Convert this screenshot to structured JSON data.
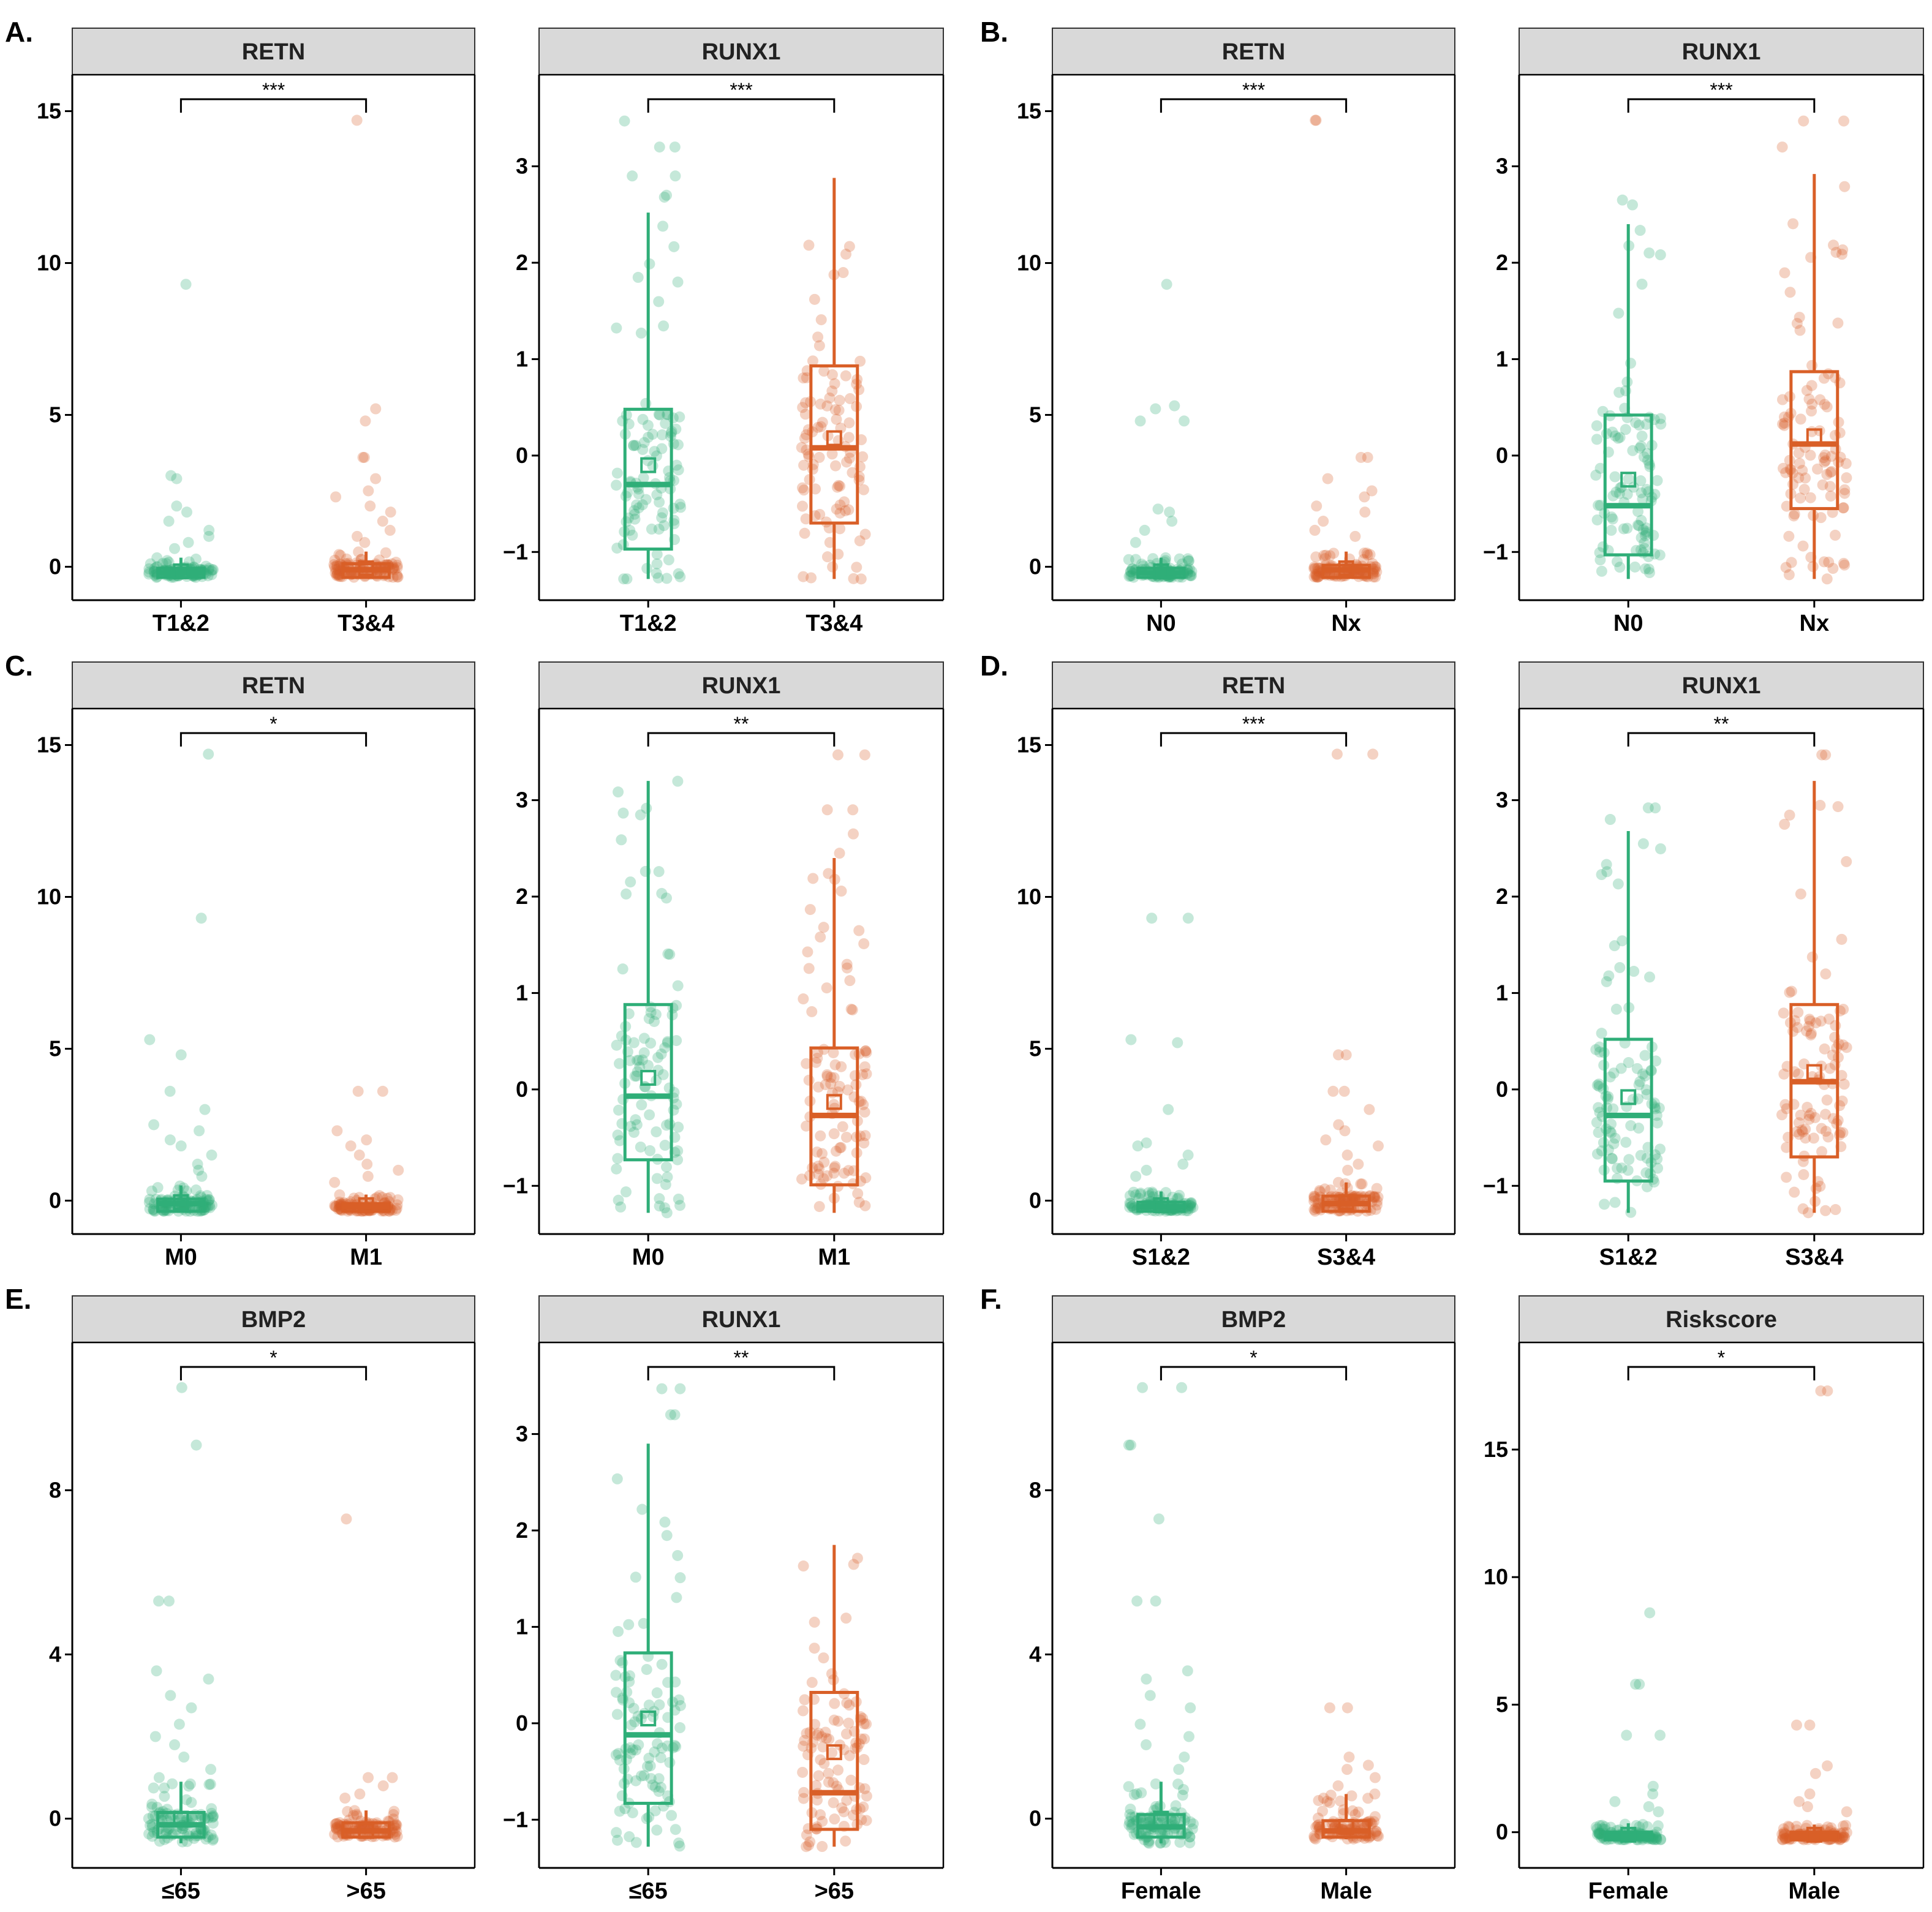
{
  "figure": {
    "colors": {
      "group1": "#2fae78",
      "group2": "#d95f27",
      "strip_fill": "#d9d9d9",
      "strip_border": "#333333"
    },
    "panel_letters": [
      "A.",
      "B.",
      "C.",
      "D.",
      "E.",
      "F."
    ]
  },
  "chart_data": [
    {
      "panel": "A.",
      "type": "box",
      "title": "RETN",
      "categories": [
        "T1&2",
        "T3&4"
      ],
      "yticks": [
        0,
        5,
        10,
        15
      ],
      "ylim": [
        -1.1,
        16.2
      ],
      "significance": "***",
      "groups": [
        {
          "name": "T1&2",
          "median": -0.2,
          "q1": -0.35,
          "q3": -0.05,
          "mean": -0.15,
          "whisker_low": -0.35,
          "whisker_high": 0.3,
          "outliers": [
            9.3,
            3.0,
            2.9,
            2.0,
            1.8,
            1.5,
            1.2,
            1.0,
            0.8,
            0.6
          ]
        },
        {
          "name": "T3&4",
          "median": -0.1,
          "q1": -0.35,
          "q3": 0.1,
          "mean": -0.05,
          "whisker_low": -0.35,
          "whisker_high": 0.5,
          "outliers": [
            14.7,
            5.2,
            4.8,
            3.6,
            3.6,
            2.9,
            2.5,
            2.3,
            2.0,
            1.8,
            1.5,
            1.2,
            1.0,
            0.8
          ]
        }
      ]
    },
    {
      "panel": "A.",
      "type": "box",
      "title": "RUNX1",
      "categories": [
        "T1&2",
        "T3&4"
      ],
      "yticks": [
        -1,
        0,
        1,
        2,
        3
      ],
      "ylim": [
        -1.5,
        3.95
      ],
      "significance": "***",
      "groups": [
        {
          "name": "T1&2",
          "median": -0.3,
          "q1": -0.97,
          "q3": 0.48,
          "mean": -0.1,
          "whisker_low": -1.28,
          "whisker_high": 2.52,
          "outliers": [
            3.47,
            3.2,
            3.2,
            2.9,
            2.9,
            2.7,
            2.68
          ]
        },
        {
          "name": "T3&4",
          "median": 0.08,
          "q1": -0.7,
          "q3": 0.93,
          "mean": 0.18,
          "whisker_low": -1.28,
          "whisker_high": 2.88,
          "outliers": []
        }
      ]
    },
    {
      "panel": "B.",
      "type": "box",
      "title": "RETN",
      "categories": [
        "N0",
        "Nx"
      ],
      "yticks": [
        0,
        5,
        10,
        15
      ],
      "ylim": [
        -1.1,
        16.2
      ],
      "significance": "***",
      "groups": [
        {
          "name": "N0",
          "median": -0.2,
          "q1": -0.35,
          "q3": -0.05,
          "mean": -0.15,
          "whisker_low": -0.35,
          "whisker_high": 0.3,
          "outliers": [
            9.3,
            5.3,
            5.2,
            4.8,
            4.8,
            1.9,
            1.8,
            1.5,
            1.2,
            0.8
          ]
        },
        {
          "name": "Nx",
          "median": -0.1,
          "q1": -0.35,
          "q3": 0.05,
          "mean": -0.05,
          "whisker_low": -0.35,
          "whisker_high": 0.5,
          "outliers": [
            14.7,
            14.7,
            3.6,
            3.6,
            2.9,
            2.5,
            2.3,
            2.0,
            1.8,
            1.5,
            1.2,
            1.0
          ]
        }
      ]
    },
    {
      "panel": "B.",
      "type": "box",
      "title": "RUNX1",
      "categories": [
        "N0",
        "Nx"
      ],
      "yticks": [
        -1,
        0,
        1,
        2,
        3
      ],
      "ylim": [
        -1.5,
        3.95
      ],
      "significance": "***",
      "groups": [
        {
          "name": "N0",
          "median": -0.52,
          "q1": -1.03,
          "q3": 0.42,
          "mean": -0.25,
          "whisker_low": -1.28,
          "whisker_high": 2.4,
          "outliers": [
            2.65,
            2.6
          ]
        },
        {
          "name": "Nx",
          "median": 0.12,
          "q1": -0.55,
          "q3": 0.87,
          "mean": 0.2,
          "whisker_low": -1.28,
          "whisker_high": 2.92,
          "outliers": [
            3.47,
            3.47,
            3.2
          ]
        }
      ]
    },
    {
      "panel": "C.",
      "type": "box",
      "title": "RETN",
      "categories": [
        "M0",
        "M1"
      ],
      "yticks": [
        0,
        5,
        10,
        15
      ],
      "ylim": [
        -1.1,
        16.2
      ],
      "significance": "*",
      "groups": [
        {
          "name": "M0",
          "median": -0.1,
          "q1": -0.35,
          "q3": 0.05,
          "mean": -0.05,
          "whisker_low": -0.35,
          "whisker_high": 0.5,
          "outliers": [
            14.7,
            9.3,
            5.3,
            4.8,
            3.6,
            3.0,
            2.5,
            2.3,
            2.0,
            1.8,
            1.5,
            1.2,
            1.0,
            0.8
          ]
        },
        {
          "name": "M1",
          "median": -0.2,
          "q1": -0.35,
          "q3": -0.1,
          "mean": -0.15,
          "whisker_low": -0.35,
          "whisker_high": 0.2,
          "outliers": [
            3.6,
            3.6,
            2.3,
            2.0,
            1.8,
            1.5,
            1.2,
            1.0,
            0.8,
            0.6
          ]
        }
      ]
    },
    {
      "panel": "C.",
      "type": "box",
      "title": "RUNX1",
      "categories": [
        "M0",
        "M1"
      ],
      "yticks": [
        -1,
        0,
        1,
        2,
        3
      ],
      "ylim": [
        -1.5,
        3.95
      ],
      "significance": "**",
      "groups": [
        {
          "name": "M0",
          "median": -0.07,
          "q1": -0.73,
          "q3": 0.88,
          "mean": 0.12,
          "whisker_low": -1.28,
          "whisker_high": 3.2,
          "outliers": []
        },
        {
          "name": "M1",
          "median": -0.27,
          "q1": -0.99,
          "q3": 0.43,
          "mean": -0.13,
          "whisker_low": -1.28,
          "whisker_high": 2.4,
          "outliers": [
            3.47,
            3.47,
            2.9,
            2.9,
            2.65,
            2.45
          ]
        }
      ]
    },
    {
      "panel": "D.",
      "type": "box",
      "title": "RETN",
      "categories": [
        "S1&2",
        "S3&4"
      ],
      "yticks": [
        0,
        5,
        10,
        15
      ],
      "ylim": [
        -1.1,
        16.2
      ],
      "significance": "***",
      "groups": [
        {
          "name": "S1&2",
          "median": -0.2,
          "q1": -0.35,
          "q3": -0.05,
          "mean": -0.15,
          "whisker_low": -0.35,
          "whisker_high": 0.3,
          "outliers": [
            9.3,
            9.3,
            5.3,
            5.2,
            3.0,
            1.9,
            1.8,
            1.5,
            1.2,
            1.0,
            0.8
          ]
        },
        {
          "name": "S3&4",
          "median": -0.1,
          "q1": -0.35,
          "q3": 0.15,
          "mean": -0.05,
          "whisker_low": -0.35,
          "whisker_high": 0.6,
          "outliers": [
            14.7,
            14.7,
            4.8,
            4.8,
            3.6,
            3.6,
            3.0,
            2.5,
            2.3,
            2.0,
            1.8,
            1.5,
            1.2,
            1.0
          ]
        }
      ]
    },
    {
      "panel": "D.",
      "type": "box",
      "title": "RUNX1",
      "categories": [
        "S1&2",
        "S3&4"
      ],
      "yticks": [
        -1,
        0,
        1,
        2,
        3
      ],
      "ylim": [
        -1.5,
        3.95
      ],
      "significance": "**",
      "groups": [
        {
          "name": "S1&2",
          "median": -0.27,
          "q1": -0.95,
          "q3": 0.52,
          "mean": -0.08,
          "whisker_low": -1.28,
          "whisker_high": 2.68,
          "outliers": [
            2.92,
            2.92,
            2.8
          ]
        },
        {
          "name": "S3&4",
          "median": 0.08,
          "q1": -0.7,
          "q3": 0.88,
          "mean": 0.18,
          "whisker_low": -1.28,
          "whisker_high": 3.2,
          "outliers": [
            3.47,
            3.47
          ]
        }
      ]
    },
    {
      "panel": "E.",
      "type": "box",
      "title": "BMP2",
      "categories": [
        "≤65",
        ">65"
      ],
      "yticks": [
        0,
        4,
        8
      ],
      "ylim": [
        -1.2,
        11.6
      ],
      "significance": "*",
      "groups": [
        {
          "name": "≤65",
          "median": -0.15,
          "q1": -0.45,
          "q3": 0.15,
          "mean": 0.0,
          "whisker_low": -0.6,
          "whisker_high": 0.9,
          "outliers": [
            10.5,
            9.1,
            5.3,
            5.3,
            3.6,
            3.4,
            3.0,
            2.7,
            2.3,
            2.0,
            1.8,
            1.5,
            1.2,
            1.0
          ]
        },
        {
          "name": ">65",
          "median": -0.3,
          "q1": -0.45,
          "q3": -0.1,
          "mean": -0.3,
          "whisker_low": -0.45,
          "whisker_high": 0.2,
          "outliers": [
            7.3,
            1.0,
            1.0,
            0.8,
            0.6,
            0.5
          ]
        }
      ]
    },
    {
      "panel": "E.",
      "type": "box",
      "title": "RUNX1",
      "categories": [
        "≤65",
        ">65"
      ],
      "yticks": [
        -1,
        0,
        1,
        2,
        3
      ],
      "ylim": [
        -1.5,
        3.95
      ],
      "significance": "**",
      "groups": [
        {
          "name": "≤65",
          "median": -0.12,
          "q1": -0.83,
          "q3": 0.73,
          "mean": 0.05,
          "whisker_low": -1.28,
          "whisker_high": 2.9,
          "outliers": [
            3.47,
            3.47,
            3.2,
            3.2
          ]
        },
        {
          "name": ">65",
          "median": -0.72,
          "q1": -1.1,
          "q3": 0.32,
          "mean": -0.3,
          "whisker_low": -1.28,
          "whisker_high": 1.85,
          "outliers": []
        }
      ]
    },
    {
      "panel": "F.",
      "type": "box",
      "title": "BMP2",
      "categories": [
        "Female",
        "Male"
      ],
      "yticks": [
        0,
        4,
        8
      ],
      "ylim": [
        -1.2,
        11.6
      ],
      "significance": "*",
      "groups": [
        {
          "name": "Female",
          "median": -0.2,
          "q1": -0.45,
          "q3": 0.1,
          "mean": 0.0,
          "whisker_low": -0.6,
          "whisker_high": 0.9,
          "outliers": [
            10.5,
            10.5,
            9.1,
            9.1,
            7.3,
            5.3,
            5.3,
            3.6,
            3.4,
            3.0,
            2.7,
            2.3,
            2.0,
            1.8,
            1.5,
            1.2
          ]
        },
        {
          "name": "Male",
          "median": -0.3,
          "q1": -0.45,
          "q3": -0.05,
          "mean": -0.2,
          "whisker_low": -0.5,
          "whisker_high": 0.6,
          "outliers": [
            2.7,
            2.7,
            1.5,
            1.3,
            1.2,
            1.0,
            0.8,
            0.6
          ]
        }
      ]
    },
    {
      "panel": "F.",
      "type": "box",
      "title": "Riskscore",
      "categories": [
        "Female",
        "Male"
      ],
      "yticks": [
        0,
        5,
        10,
        15
      ],
      "ylim": [
        -1.4,
        19.2
      ],
      "significance": "*",
      "groups": [
        {
          "name": "Female",
          "median": -0.15,
          "q1": -0.3,
          "q3": 0.0,
          "mean": -0.1,
          "whisker_low": -0.3,
          "whisker_high": 0.35,
          "outliers": [
            8.6,
            5.8,
            5.8,
            3.8,
            3.8,
            1.8,
            1.5,
            1.2,
            1.0,
            0.8
          ]
        },
        {
          "name": "Male",
          "median": -0.15,
          "q1": -0.3,
          "q3": 0.0,
          "mean": -0.1,
          "whisker_low": -0.3,
          "whisker_high": 0.3,
          "outliers": [
            17.3,
            17.3,
            4.2,
            4.2,
            2.6,
            2.3,
            1.5,
            1.2,
            1.0,
            0.8
          ]
        }
      ]
    }
  ]
}
